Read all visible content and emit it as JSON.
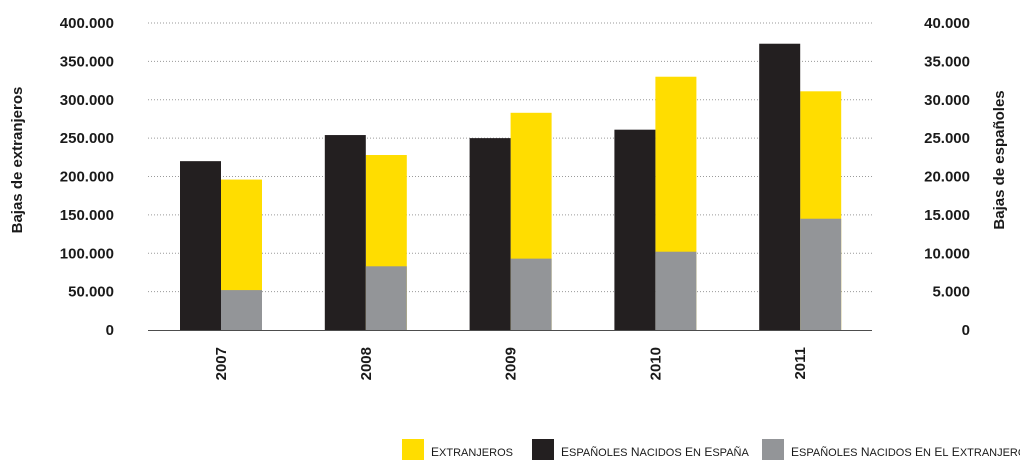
{
  "chart_data": {
    "type": "bar",
    "categories": [
      "2007",
      "2008",
      "2009",
      "2010",
      "2011"
    ],
    "series": [
      {
        "name": "Extranjeros",
        "axis": "left",
        "values": [
          196000,
          228000,
          283000,
          330000,
          311000
        ],
        "color": "#ffdd00"
      },
      {
        "name": "Españoles nacidos en España",
        "axis": "right",
        "values": [
          22000,
          25400,
          25000,
          26100,
          37300
        ],
        "color": "#231f20"
      },
      {
        "name": "Españoles nacidos en el extranjero",
        "axis": "right",
        "values": [
          5200,
          8300,
          9300,
          10200,
          14500
        ],
        "color": "#939598"
      }
    ],
    "ylabel": "Bajas de extranjeros",
    "y2label": "Bajas de españoles",
    "ylim": [
      0,
      400000
    ],
    "y2lim": [
      0,
      40000
    ],
    "y_ticks": [
      "0",
      "50.000",
      "100.000",
      "150.000",
      "200.000",
      "250.000",
      "300.000",
      "350.000",
      "400.000"
    ],
    "y2_ticks": [
      "0",
      "5.000",
      "10.000",
      "15.000",
      "20.000",
      "25.000",
      "30.000",
      "35.000",
      "40.000"
    ],
    "grid": true,
    "legend_position": "bottom-right"
  }
}
